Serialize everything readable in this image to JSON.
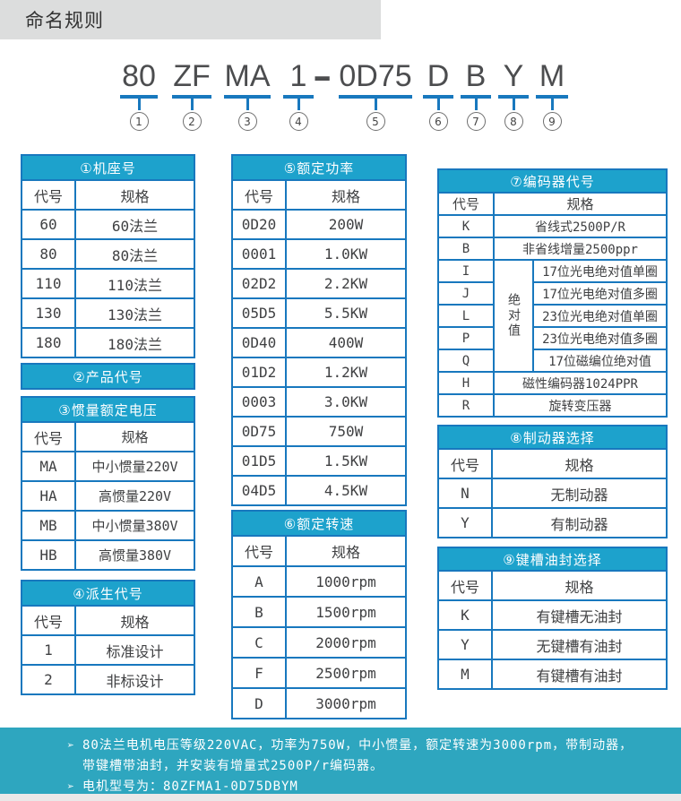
{
  "colors": {
    "header_teal": "#1da2cc",
    "border_blue": "#1878be",
    "footer_teal": "#2ea6bf"
  },
  "page_title": "命名规则",
  "model": {
    "segments": [
      {
        "text": "80",
        "num": "1"
      },
      {
        "text": "ZF",
        "num": "2"
      },
      {
        "text": "MA",
        "num": "3"
      },
      {
        "text": "1",
        "num": "4"
      },
      {
        "text": "0D75",
        "num": "5"
      },
      {
        "text": "D",
        "num": "6"
      },
      {
        "text": "B",
        "num": "7"
      },
      {
        "text": "Y",
        "num": "8"
      },
      {
        "text": "M",
        "num": "9"
      }
    ],
    "separator": "-"
  },
  "columns": {
    "left": {
      "frame": {
        "title": "①机座号",
        "headers": [
          "代号",
          "规格"
        ],
        "rows": [
          [
            "60",
            "60法兰"
          ],
          [
            "80",
            "80法兰"
          ],
          [
            "110",
            "110法兰"
          ],
          [
            "130",
            "130法兰"
          ],
          [
            "180",
            "180法兰"
          ]
        ]
      },
      "product": {
        "title": "②产品代号"
      },
      "inertia": {
        "title": "③惯量额定电压",
        "headers": [
          "代号",
          "规格"
        ],
        "rows": [
          [
            "MA",
            "中小惯量220V"
          ],
          [
            "HA",
            "高惯量220V"
          ],
          [
            "MB",
            "中小惯量380V"
          ],
          [
            "HB",
            "高惯量380V"
          ]
        ]
      },
      "derivative": {
        "title": "④派生代号",
        "headers": [
          "代号",
          "规格"
        ],
        "rows": [
          [
            "1",
            "标准设计"
          ],
          [
            "2",
            "非标设计"
          ]
        ]
      }
    },
    "middle": {
      "power": {
        "title": "⑤额定功率",
        "headers": [
          "代号",
          "规格"
        ],
        "rows": [
          [
            "0D20",
            "200W"
          ],
          [
            "0001",
            "1.0KW"
          ],
          [
            "02D2",
            "2.2KW"
          ],
          [
            "05D5",
            "5.5KW"
          ],
          [
            "0D40",
            "400W"
          ],
          [
            "01D2",
            "1.2KW"
          ],
          [
            "0003",
            "3.0KW"
          ],
          [
            "0D75",
            "750W"
          ],
          [
            "01D5",
            "1.5KW"
          ],
          [
            "04D5",
            "4.5KW"
          ]
        ]
      },
      "speed": {
        "title": "⑥额定转速",
        "headers": [
          "代号",
          "规格"
        ],
        "rows": [
          [
            "A",
            "1000rpm"
          ],
          [
            "B",
            "1500rpm"
          ],
          [
            "C",
            "2000rpm"
          ],
          [
            "F",
            "2500rpm"
          ],
          [
            "D",
            "3000rpm"
          ]
        ]
      }
    },
    "right": {
      "encoder": {
        "title": "⑦编码器代号",
        "headers": [
          "代号",
          "规格"
        ],
        "group": {
          "label": "绝对值",
          "start": 2,
          "span": 5
        },
        "rows": [
          [
            "K",
            "省线式2500P/R"
          ],
          [
            "B",
            "非省线增量2500ppr"
          ],
          [
            "I",
            "17位光电绝对值单圈"
          ],
          [
            "J",
            "17位光电绝对值多圈"
          ],
          [
            "L",
            "23位光电绝对值单圈"
          ],
          [
            "P",
            "23位光电绝对值多圈"
          ],
          [
            "Q",
            "17位磁编位绝对值"
          ],
          [
            "H",
            "磁性编码器1024PPR"
          ],
          [
            "R",
            "旋转变压器"
          ]
        ]
      },
      "brake": {
        "title": "⑧制动器选择",
        "headers": [
          "代号",
          "规格"
        ],
        "rows": [
          [
            "N",
            "无制动器"
          ],
          [
            "Y",
            "有制动器"
          ]
        ]
      },
      "keyway": {
        "title": "⑨键槽油封选择",
        "headers": [
          "代号",
          "规格"
        ],
        "rows": [
          [
            "K",
            "有键槽无油封"
          ],
          [
            "Y",
            "无键槽有油封"
          ],
          [
            "M",
            "有键槽有油封"
          ]
        ]
      }
    }
  },
  "footer": {
    "bullet": "➢",
    "note1_line1": "80法兰电机电压等级220VAC，功率为750W，中小惯量，额定转速为3000rpm，带制动器，",
    "note1_line2": "带键槽带油封，并安装有增量式2500P/r编码器。",
    "note2": "电机型号为：80ZFMA1-0D75DBYM"
  }
}
